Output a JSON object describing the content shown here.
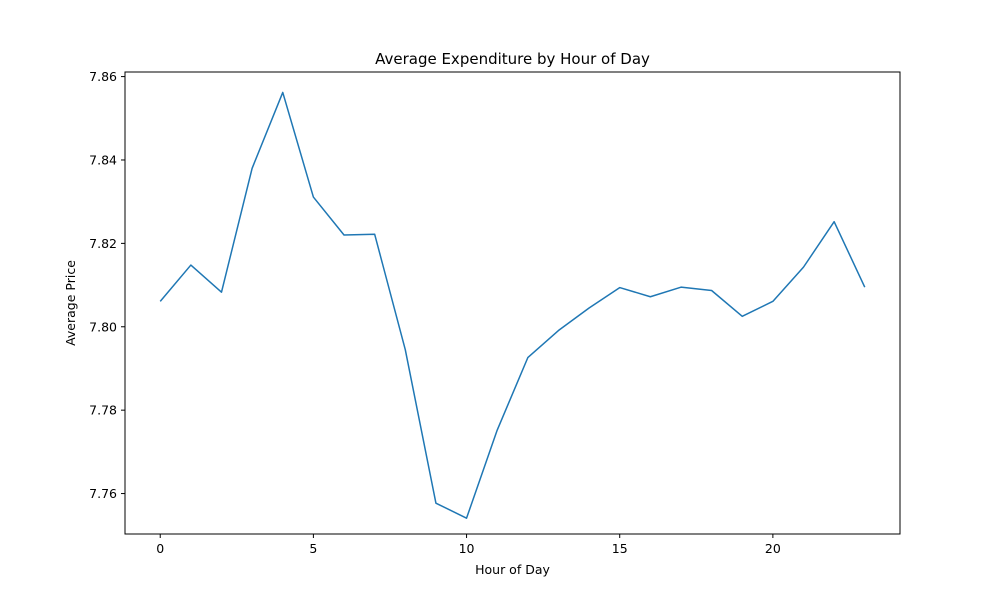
{
  "chart_data": {
    "type": "line",
    "title": "Average Expenditure by Hour of Day",
    "xlabel": "Hour of Day",
    "ylabel": "Average Price",
    "xlim": [
      -1.15,
      24.15
    ],
    "ylim": [
      7.7503,
      7.8611
    ],
    "x_ticks": [
      0,
      5,
      10,
      15,
      20
    ],
    "y_ticks": [
      7.76,
      7.78,
      7.8,
      7.82,
      7.84,
      7.86
    ],
    "y_tick_labels": [
      "7.76",
      "7.78",
      "7.80",
      "7.82",
      "7.84",
      "7.86"
    ],
    "grid": false,
    "series": [
      {
        "color": "#1f77b4",
        "x": [
          0,
          1,
          2,
          3,
          4,
          5,
          6,
          7,
          8,
          9,
          10,
          11,
          12,
          13,
          14,
          15,
          16,
          17,
          18,
          19,
          20,
          21,
          22,
          23
        ],
        "values": [
          7.8061,
          7.8148,
          7.8083,
          7.838,
          7.8562,
          7.8311,
          7.822,
          7.8222,
          7.7945,
          7.7577,
          7.7541,
          7.7752,
          7.7926,
          7.7991,
          7.8045,
          7.8094,
          7.8072,
          7.8095,
          7.8087,
          7.8025,
          7.8061,
          7.8143,
          7.8252,
          7.8095
        ]
      }
    ]
  }
}
